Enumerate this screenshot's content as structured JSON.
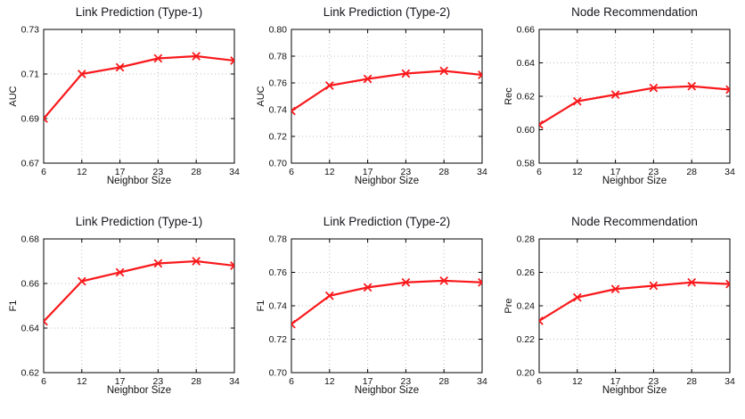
{
  "figure": {
    "background": "#ffffff",
    "rows": 2,
    "cols": 3
  },
  "colors": {
    "line": "#f9191c",
    "grid": "#bdbdbd",
    "axis": "#000000",
    "text": "#111111",
    "title": "#16161d"
  },
  "chart_data": [
    {
      "type": "line",
      "title": "Link Prediction (Type-1)",
      "xlabel": "Neighbor Size",
      "ylabel": "AUC",
      "x": [
        6,
        12,
        17,
        23,
        28,
        34
      ],
      "values": [
        0.69,
        0.71,
        0.713,
        0.717,
        0.718,
        0.716
      ],
      "ylim": [
        0.67,
        0.73
      ],
      "yticks": [
        "0.67",
        "0.69",
        "0.71",
        "0.73"
      ],
      "xticks": [
        "6",
        "12",
        "17",
        "23",
        "28",
        "34"
      ],
      "grid": true,
      "marker": "x",
      "legend": "none"
    },
    {
      "type": "line",
      "title": "Link Prediction (Type-2)",
      "xlabel": "Neighbor Size",
      "ylabel": "AUC",
      "x": [
        6,
        12,
        17,
        23,
        28,
        34
      ],
      "values": [
        0.739,
        0.758,
        0.763,
        0.767,
        0.769,
        0.766
      ],
      "ylim": [
        0.7,
        0.8
      ],
      "yticks": [
        "0.70",
        "0.72",
        "0.74",
        "0.76",
        "0.78",
        "0.80"
      ],
      "xticks": [
        "6",
        "12",
        "17",
        "23",
        "28",
        "34"
      ],
      "grid": true,
      "marker": "x",
      "legend": "none"
    },
    {
      "type": "line",
      "title": "Node Recommendation",
      "xlabel": "Neighbor Size",
      "ylabel": "Rec",
      "x": [
        6,
        12,
        17,
        23,
        28,
        34
      ],
      "values": [
        0.603,
        0.617,
        0.621,
        0.625,
        0.626,
        0.624
      ],
      "ylim": [
        0.58,
        0.66
      ],
      "yticks": [
        "0.58",
        "0.60",
        "0.62",
        "0.64",
        "0.66"
      ],
      "xticks": [
        "6",
        "12",
        "17",
        "23",
        "28",
        "34"
      ],
      "grid": true,
      "marker": "x",
      "legend": "none"
    },
    {
      "type": "line",
      "title": "Link Prediction (Type-1)",
      "xlabel": "Neighbor Size",
      "ylabel": "F1",
      "x": [
        6,
        12,
        17,
        23,
        28,
        34
      ],
      "values": [
        0.643,
        0.661,
        0.665,
        0.669,
        0.67,
        0.668
      ],
      "ylim": [
        0.62,
        0.68
      ],
      "yticks": [
        "0.62",
        "0.64",
        "0.66",
        "0.68"
      ],
      "xticks": [
        "6",
        "12",
        "17",
        "23",
        "28",
        "34"
      ],
      "grid": true,
      "marker": "x",
      "legend": "none"
    },
    {
      "type": "line",
      "title": "Link Prediction (Type-2)",
      "xlabel": "Neighbor Size",
      "ylabel": "F1",
      "x": [
        6,
        12,
        17,
        23,
        28,
        34
      ],
      "values": [
        0.729,
        0.746,
        0.751,
        0.754,
        0.755,
        0.754
      ],
      "ylim": [
        0.7,
        0.78
      ],
      "yticks": [
        "0.70",
        "0.72",
        "0.74",
        "0.76",
        "0.78"
      ],
      "xticks": [
        "6",
        "12",
        "17",
        "23",
        "28",
        "34"
      ],
      "grid": true,
      "marker": "x",
      "legend": "none"
    },
    {
      "type": "line",
      "title": "Node Recommendation",
      "xlabel": "Neighbor Size",
      "ylabel": "Pre",
      "x": [
        6,
        12,
        17,
        23,
        28,
        34
      ],
      "values": [
        0.231,
        0.245,
        0.25,
        0.252,
        0.254,
        0.253
      ],
      "ylim": [
        0.2,
        0.28
      ],
      "yticks": [
        "0.20",
        "0.22",
        "0.24",
        "0.26",
        "0.28"
      ],
      "xticks": [
        "6",
        "12",
        "17",
        "23",
        "28",
        "34"
      ],
      "grid": true,
      "marker": "x",
      "legend": "none"
    }
  ]
}
